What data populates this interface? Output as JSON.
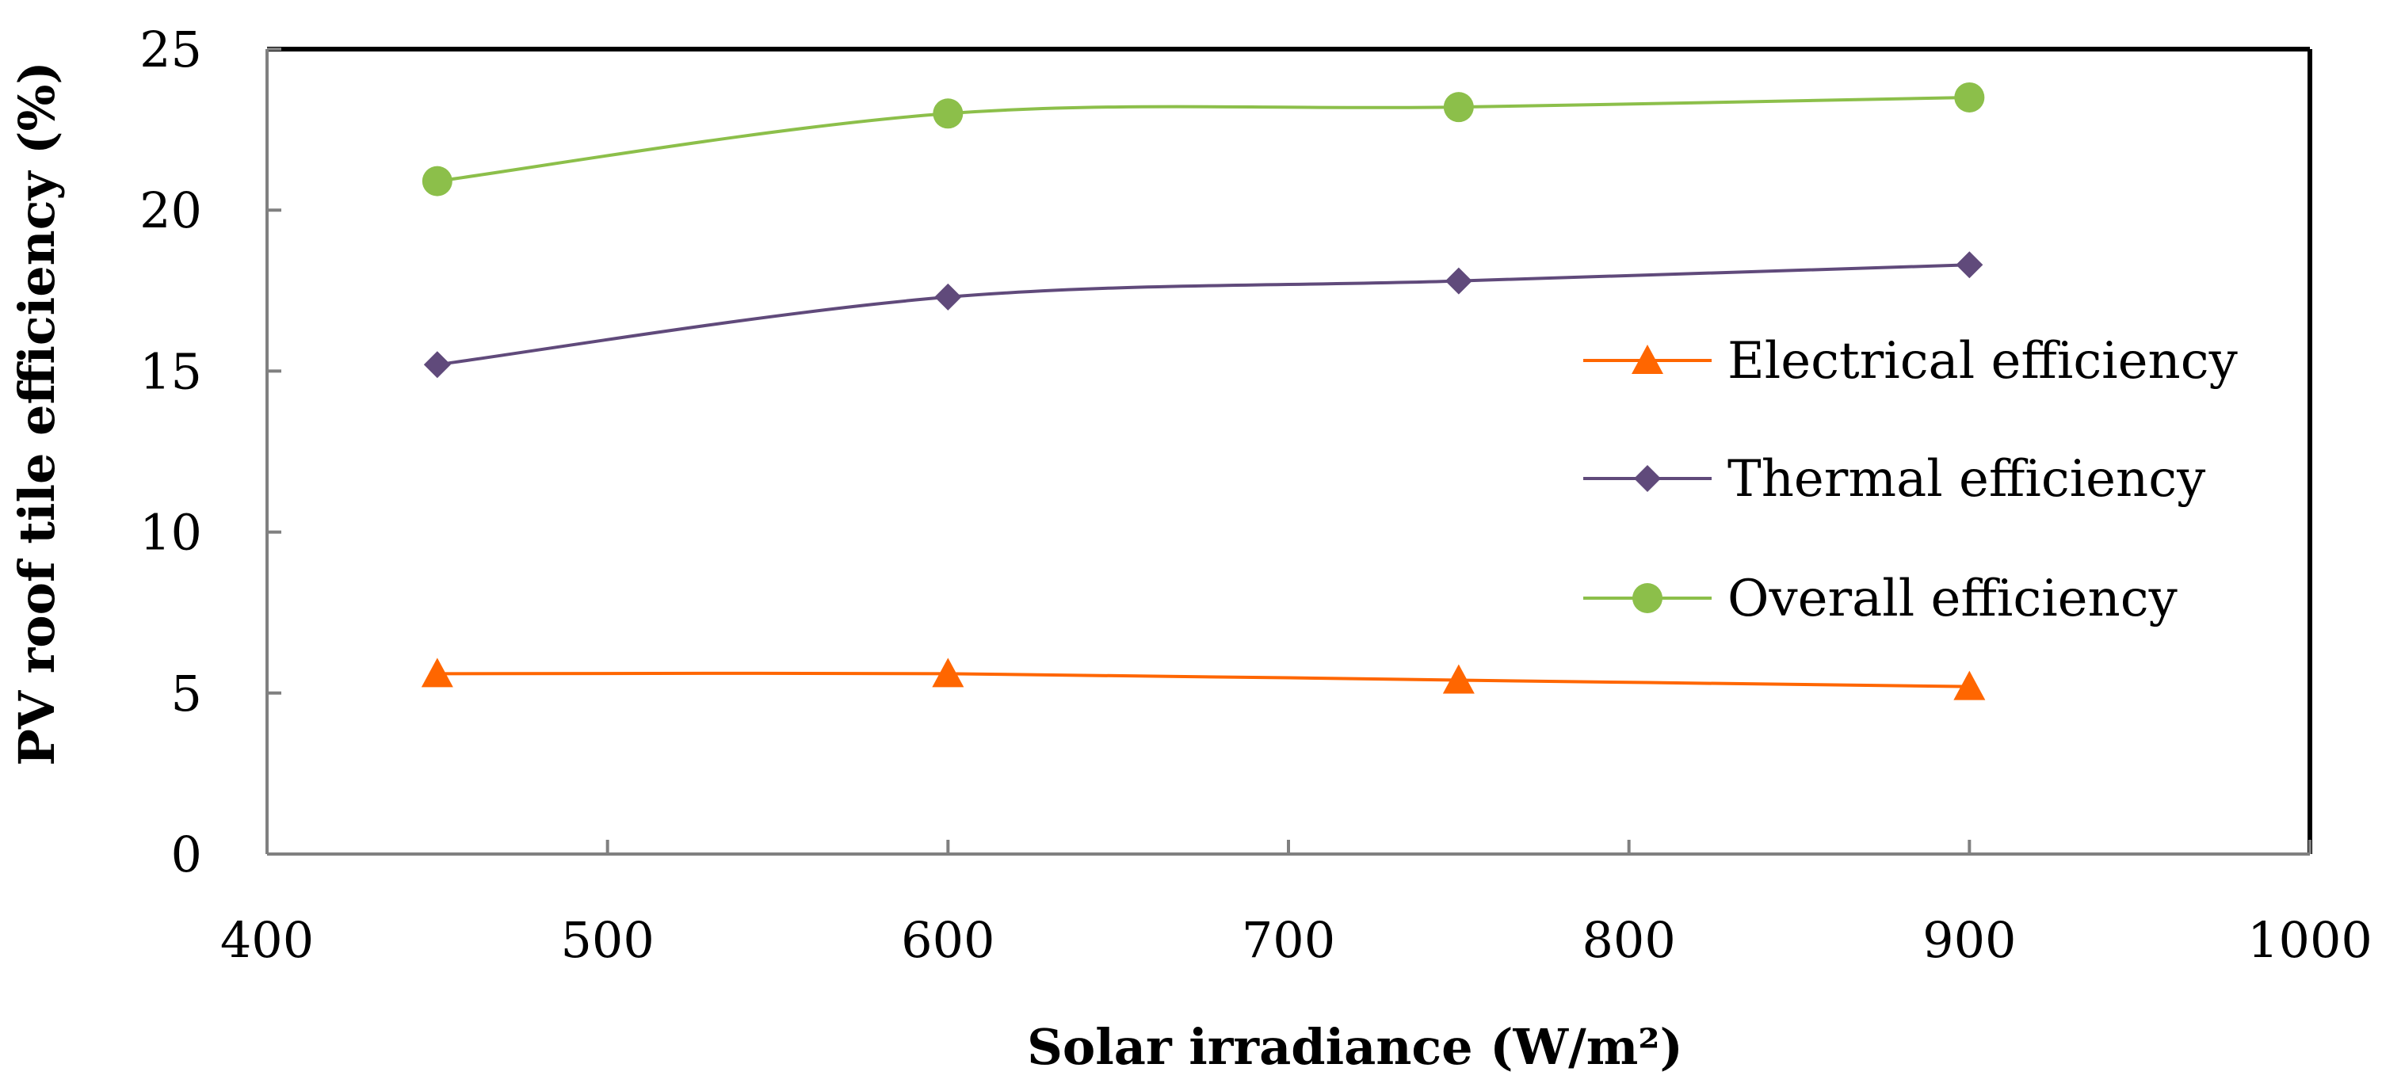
{
  "chart_data": {
    "type": "line",
    "title": "",
    "xlabel": "Solar irradiance (W/m²)",
    "ylabel": "PV roof tile efficiency (%)",
    "xlim": [
      400,
      1000
    ],
    "ylim": [
      0,
      25
    ],
    "x_ticks": [
      400,
      500,
      600,
      700,
      800,
      900,
      1000
    ],
    "y_ticks": [
      0,
      5,
      10,
      15,
      20,
      25
    ],
    "grid": false,
    "legend_position": "right",
    "x": [
      450,
      600,
      750,
      900
    ],
    "series": [
      {
        "name": "Electrical efficiency",
        "marker": "triangle",
        "color": "#ff6600",
        "values": [
          5.6,
          5.6,
          5.4,
          5.2
        ]
      },
      {
        "name": "Thermal efficiency",
        "marker": "diamond",
        "color": "#604a7b",
        "values": [
          15.2,
          17.3,
          17.8,
          18.3
        ]
      },
      {
        "name": "Overall efficiency",
        "marker": "circle",
        "color": "#8cbf4a",
        "values": [
          20.9,
          23.0,
          23.2,
          23.5
        ]
      }
    ]
  }
}
